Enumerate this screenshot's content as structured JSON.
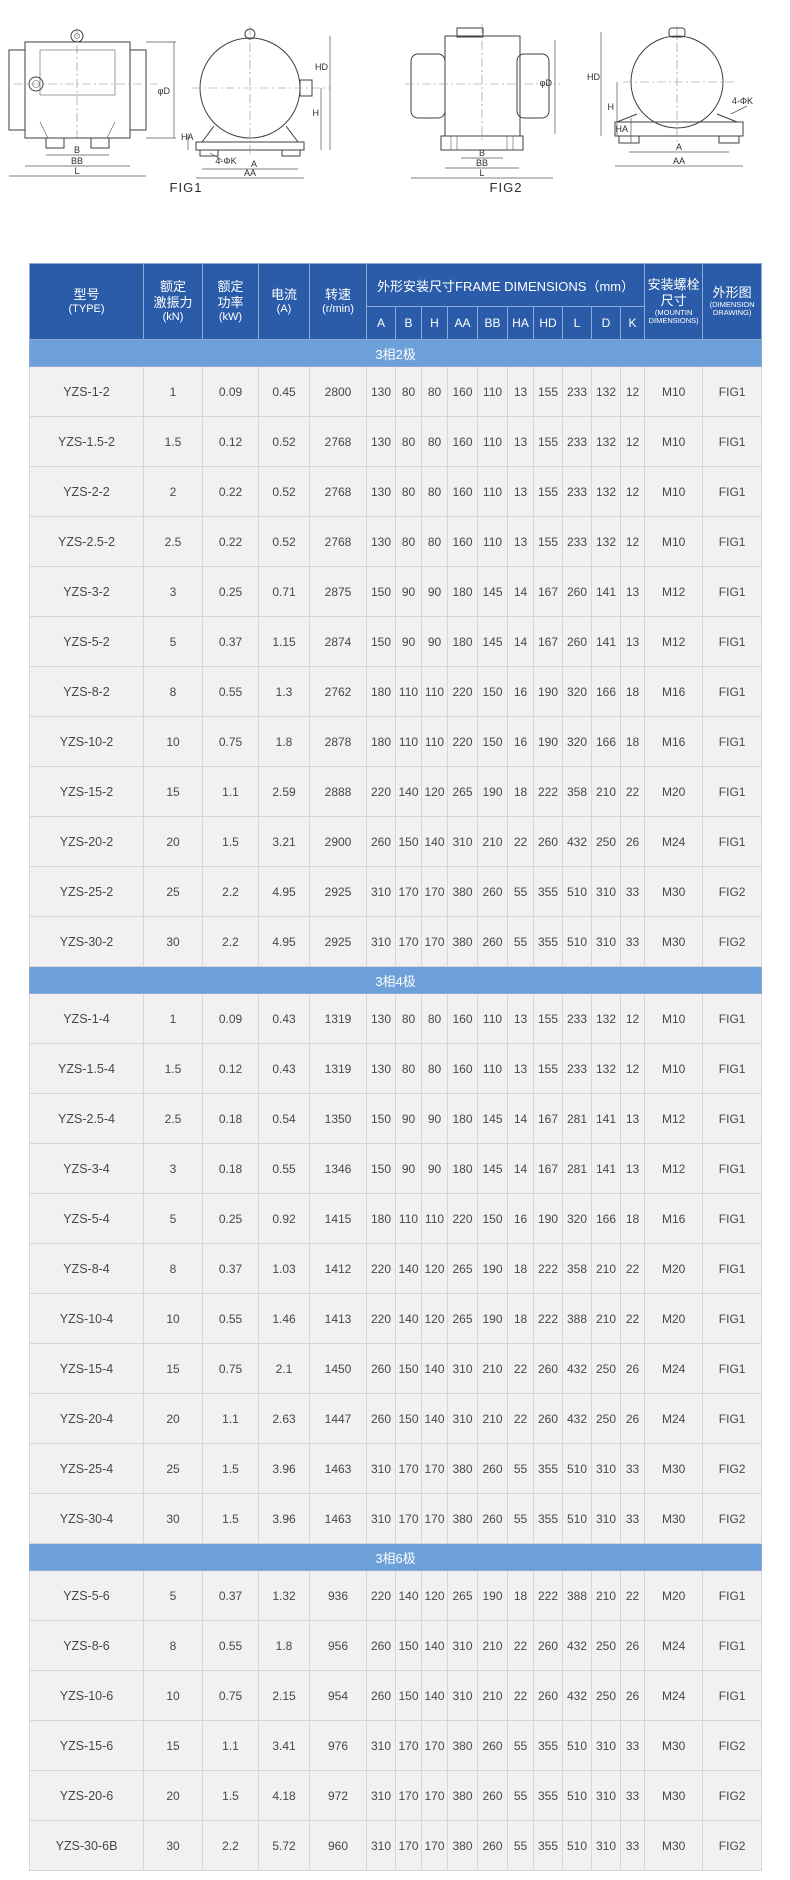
{
  "figures": {
    "fig1_caption": "FIG1",
    "fig2_caption": "FIG2",
    "labels": {
      "phiD": "φD",
      "B": "B",
      "BB": "BB",
      "L": "L",
      "HD": "HD",
      "H": "H",
      "HA": "HA",
      "holes": "4-ΦK",
      "A": "A",
      "AA": "AA"
    }
  },
  "table": {
    "header": {
      "type": [
        "型号",
        "(TYPE)"
      ],
      "force": [
        "额定",
        "激振力",
        "(kN)"
      ],
      "power": [
        "额定",
        "功率",
        "(kW)"
      ],
      "current": [
        "电流",
        "(A)"
      ],
      "speed": [
        "转速",
        "(r/min)"
      ],
      "frame": "外形安装尺寸FRAME DIMENSIONS（mm）",
      "dims": [
        "A",
        "B",
        "H",
        "AA",
        "BB",
        "HA",
        "HD",
        "L",
        "D",
        "K"
      ],
      "bolt": [
        "安装螺栓",
        "尺寸"
      ],
      "bolt_en": "(MOUNTIN DIMENSIONS)",
      "fig": [
        "外形图"
      ],
      "fig_en": "(DIMENSION DRAWING)"
    },
    "sections": [
      {
        "title": "3相2极",
        "rows": [
          [
            "YZS-1-2",
            "1",
            "0.09",
            "0.45",
            "2800",
            "130",
            "80",
            "80",
            "160",
            "110",
            "13",
            "155",
            "233",
            "132",
            "12",
            "M10",
            "FIG1"
          ],
          [
            "YZS-1.5-2",
            "1.5",
            "0.12",
            "0.52",
            "2768",
            "130",
            "80",
            "80",
            "160",
            "110",
            "13",
            "155",
            "233",
            "132",
            "12",
            "M10",
            "FIG1"
          ],
          [
            "YZS-2-2",
            "2",
            "0.22",
            "0.52",
            "2768",
            "130",
            "80",
            "80",
            "160",
            "110",
            "13",
            "155",
            "233",
            "132",
            "12",
            "M10",
            "FIG1"
          ],
          [
            "YZS-2.5-2",
            "2.5",
            "0.22",
            "0.52",
            "2768",
            "130",
            "80",
            "80",
            "160",
            "110",
            "13",
            "155",
            "233",
            "132",
            "12",
            "M10",
            "FIG1"
          ],
          [
            "YZS-3-2",
            "3",
            "0.25",
            "0.71",
            "2875",
            "150",
            "90",
            "90",
            "180",
            "145",
            "14",
            "167",
            "260",
            "141",
            "13",
            "M12",
            "FIG1"
          ],
          [
            "YZS-5-2",
            "5",
            "0.37",
            "1.15",
            "2874",
            "150",
            "90",
            "90",
            "180",
            "145",
            "14",
            "167",
            "260",
            "141",
            "13",
            "M12",
            "FIG1"
          ],
          [
            "YZS-8-2",
            "8",
            "0.55",
            "1.3",
            "2762",
            "180",
            "110",
            "110",
            "220",
            "150",
            "16",
            "190",
            "320",
            "166",
            "18",
            "M16",
            "FIG1"
          ],
          [
            "YZS-10-2",
            "10",
            "0.75",
            "1.8",
            "2878",
            "180",
            "110",
            "110",
            "220",
            "150",
            "16",
            "190",
            "320",
            "166",
            "18",
            "M16",
            "FIG1"
          ],
          [
            "YZS-15-2",
            "15",
            "1.1",
            "2.59",
            "2888",
            "220",
            "140",
            "120",
            "265",
            "190",
            "18",
            "222",
            "358",
            "210",
            "22",
            "M20",
            "FIG1"
          ],
          [
            "YZS-20-2",
            "20",
            "1.5",
            "3.21",
            "2900",
            "260",
            "150",
            "140",
            "310",
            "210",
            "22",
            "260",
            "432",
            "250",
            "26",
            "M24",
            "FIG1"
          ],
          [
            "YZS-25-2",
            "25",
            "2.2",
            "4.95",
            "2925",
            "310",
            "170",
            "170",
            "380",
            "260",
            "55",
            "355",
            "510",
            "310",
            "33",
            "M30",
            "FIG2"
          ],
          [
            "YZS-30-2",
            "30",
            "2.2",
            "4.95",
            "2925",
            "310",
            "170",
            "170",
            "380",
            "260",
            "55",
            "355",
            "510",
            "310",
            "33",
            "M30",
            "FIG2"
          ]
        ]
      },
      {
        "title": "3相4极",
        "rows": [
          [
            "YZS-1-4",
            "1",
            "0.09",
            "0.43",
            "1319",
            "130",
            "80",
            "80",
            "160",
            "110",
            "13",
            "155",
            "233",
            "132",
            "12",
            "M10",
            "FIG1"
          ],
          [
            "YZS-1.5-4",
            "1.5",
            "0.12",
            "0.43",
            "1319",
            "130",
            "80",
            "80",
            "160",
            "110",
            "13",
            "155",
            "233",
            "132",
            "12",
            "M10",
            "FIG1"
          ],
          [
            "YZS-2.5-4",
            "2.5",
            "0.18",
            "0.54",
            "1350",
            "150",
            "90",
            "90",
            "180",
            "145",
            "14",
            "167",
            "281",
            "141",
            "13",
            "M12",
            "FIG1"
          ],
          [
            "YZS-3-4",
            "3",
            "0.18",
            "0.55",
            "1346",
            "150",
            "90",
            "90",
            "180",
            "145",
            "14",
            "167",
            "281",
            "141",
            "13",
            "M12",
            "FIG1"
          ],
          [
            "YZS-5-4",
            "5",
            "0.25",
            "0.92",
            "1415",
            "180",
            "110",
            "110",
            "220",
            "150",
            "16",
            "190",
            "320",
            "166",
            "18",
            "M16",
            "FIG1"
          ],
          [
            "YZS-8-4",
            "8",
            "0.37",
            "1.03",
            "1412",
            "220",
            "140",
            "120",
            "265",
            "190",
            "18",
            "222",
            "358",
            "210",
            "22",
            "M20",
            "FIG1"
          ],
          [
            "YZS-10-4",
            "10",
            "0.55",
            "1.46",
            "1413",
            "220",
            "140",
            "120",
            "265",
            "190",
            "18",
            "222",
            "388",
            "210",
            "22",
            "M20",
            "FIG1"
          ],
          [
            "YZS-15-4",
            "15",
            "0.75",
            "2.1",
            "1450",
            "260",
            "150",
            "140",
            "310",
            "210",
            "22",
            "260",
            "432",
            "250",
            "26",
            "M24",
            "FIG1"
          ],
          [
            "YZS-20-4",
            "20",
            "1.1",
            "2.63",
            "1447",
            "260",
            "150",
            "140",
            "310",
            "210",
            "22",
            "260",
            "432",
            "250",
            "26",
            "M24",
            "FIG1"
          ],
          [
            "YZS-25-4",
            "25",
            "1.5",
            "3.96",
            "1463",
            "310",
            "170",
            "170",
            "380",
            "260",
            "55",
            "355",
            "510",
            "310",
            "33",
            "M30",
            "FIG2"
          ],
          [
            "YZS-30-4",
            "30",
            "1.5",
            "3.96",
            "1463",
            "310",
            "170",
            "170",
            "380",
            "260",
            "55",
            "355",
            "510",
            "310",
            "33",
            "M30",
            "FIG2"
          ]
        ]
      },
      {
        "title": "3相6极",
        "rows": [
          [
            "YZS-5-6",
            "5",
            "0.37",
            "1.32",
            "936",
            "220",
            "140",
            "120",
            "265",
            "190",
            "18",
            "222",
            "388",
            "210",
            "22",
            "M20",
            "FIG1"
          ],
          [
            "YZS-8-6",
            "8",
            "0.55",
            "1.8",
            "956",
            "260",
            "150",
            "140",
            "310",
            "210",
            "22",
            "260",
            "432",
            "250",
            "26",
            "M24",
            "FIG1"
          ],
          [
            "YZS-10-6",
            "10",
            "0.75",
            "2.15",
            "954",
            "260",
            "150",
            "140",
            "310",
            "210",
            "22",
            "260",
            "432",
            "250",
            "26",
            "M24",
            "FIG1"
          ],
          [
            "YZS-15-6",
            "15",
            "1.1",
            "3.41",
            "976",
            "310",
            "170",
            "170",
            "380",
            "260",
            "55",
            "355",
            "510",
            "310",
            "33",
            "M30",
            "FIG2"
          ],
          [
            "YZS-20-6",
            "20",
            "1.5",
            "4.18",
            "972",
            "310",
            "170",
            "170",
            "380",
            "260",
            "55",
            "355",
            "510",
            "310",
            "33",
            "M30",
            "FIG2"
          ],
          [
            "YZS-30-6B",
            "30",
            "2.2",
            "5.72",
            "960",
            "310",
            "170",
            "170",
            "380",
            "260",
            "55",
            "355",
            "510",
            "310",
            "33",
            "M30",
            "FIG2"
          ]
        ]
      }
    ]
  }
}
